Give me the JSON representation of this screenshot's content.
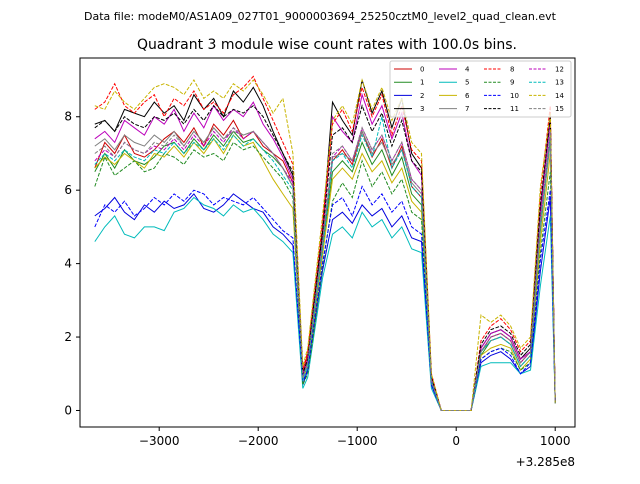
{
  "figure": {
    "suptitle": "Data file: modeM0/AS1A09_027T01_9000003694_25250cztM0_level2_quad_clean.evt",
    "offset_label": "+3.285e8"
  },
  "chart_data": {
    "type": "line",
    "title": "Quadrant 3 module wise count rates with 100.0s bins.",
    "xlabel": "",
    "ylabel": "",
    "xlim": [
      -3800,
      1200
    ],
    "ylim": [
      -0.45,
      9.6
    ],
    "x_ticks": [
      -3000,
      -2000,
      -1000,
      0,
      1000
    ],
    "x_tick_labels": [
      "−3000",
      "−2000",
      "−1000",
      "0",
      "1000"
    ],
    "y_ticks": [
      0,
      2,
      4,
      6,
      8
    ],
    "y_tick_labels": [
      "0",
      "2",
      "4",
      "6",
      "8"
    ],
    "grid": false,
    "legend_placement": "top-right",
    "legend_columns": 4,
    "x": [
      -3650,
      -3550,
      -3450,
      -3350,
      -3250,
      -3150,
      -3050,
      -2950,
      -2850,
      -2750,
      -2650,
      -2550,
      -2450,
      -2350,
      -2250,
      -2150,
      -2050,
      -1950,
      -1850,
      -1750,
      -1650,
      -1550,
      -1500,
      -1450,
      -1350,
      -1250,
      -1150,
      -1050,
      -950,
      -850,
      -750,
      -650,
      -550,
      -450,
      -350,
      -250,
      -150,
      -50,
      50,
      150,
      250,
      350,
      450,
      550,
      650,
      750,
      850,
      950,
      1000
    ],
    "series": [
      {
        "name": "0",
        "color": "#cc0000",
        "dashed": false,
        "values": [
          6.6,
          7.3,
          7.0,
          7.5,
          7.0,
          6.9,
          7.1,
          7.4,
          7.6,
          7.3,
          7.7,
          7.2,
          7.8,
          7.5,
          7.9,
          7.4,
          7.6,
          7.2,
          7.0,
          6.8,
          6.2,
          1.1,
          1.5,
          2.5,
          4.6,
          6.8,
          7.1,
          6.7,
          7.6,
          6.9,
          7.4,
          6.6,
          7.2,
          6.1,
          5.8,
          0.9,
          0.0,
          0.0,
          0.0,
          0.0,
          1.6,
          2.0,
          2.1,
          1.9,
          1.3,
          1.6,
          5.3,
          8.1,
          0.2
        ]
      },
      {
        "name": "1",
        "color": "#228b22",
        "dashed": false,
        "values": [
          6.5,
          7.0,
          6.6,
          7.1,
          6.8,
          6.7,
          6.9,
          7.2,
          7.3,
          7.0,
          7.4,
          7.1,
          7.5,
          7.2,
          7.6,
          7.3,
          7.4,
          7.1,
          6.9,
          6.6,
          6.1,
          0.9,
          1.3,
          2.3,
          4.4,
          6.5,
          6.8,
          6.5,
          7.3,
          6.7,
          7.1,
          6.4,
          6.9,
          5.9,
          5.6,
          0.8,
          0.0,
          0.0,
          0.0,
          0.0,
          1.5,
          1.9,
          2.0,
          1.8,
          1.2,
          1.5,
          4.9,
          7.4,
          0.2
        ]
      },
      {
        "name": "2",
        "color": "#0000dd",
        "dashed": false,
        "values": [
          5.3,
          5.5,
          5.8,
          5.4,
          5.2,
          5.6,
          5.4,
          5.7,
          5.5,
          5.6,
          5.9,
          5.5,
          5.4,
          5.6,
          5.9,
          5.7,
          5.5,
          5.4,
          5.0,
          4.8,
          4.5,
          0.7,
          1.1,
          2.0,
          3.8,
          5.2,
          5.4,
          5.1,
          5.6,
          5.3,
          5.5,
          5.0,
          5.3,
          4.7,
          4.6,
          0.7,
          0.0,
          0.0,
          0.0,
          0.0,
          1.3,
          1.5,
          1.6,
          1.4,
          1.0,
          1.2,
          3.8,
          5.8,
          0.2
        ]
      },
      {
        "name": "3",
        "color": "#000000",
        "dashed": false,
        "values": [
          7.8,
          7.9,
          7.6,
          8.2,
          8.1,
          8.0,
          8.4,
          8.1,
          8.3,
          7.9,
          8.6,
          8.2,
          8.5,
          8.0,
          8.7,
          8.4,
          8.8,
          8.3,
          7.6,
          7.0,
          6.4,
          1.0,
          1.4,
          2.6,
          4.9,
          8.4,
          7.9,
          7.5,
          9.0,
          8.1,
          8.7,
          7.7,
          8.5,
          7.0,
          6.6,
          0.9,
          0.0,
          0.0,
          0.0,
          0.0,
          1.7,
          2.1,
          2.2,
          2.0,
          1.4,
          1.7,
          5.5,
          8.0,
          0.2
        ]
      },
      {
        "name": "4",
        "color": "#bb00bb",
        "dashed": false,
        "values": [
          7.4,
          7.6,
          7.3,
          7.9,
          7.7,
          7.5,
          8.0,
          7.8,
          8.2,
          7.6,
          8.1,
          7.7,
          8.3,
          7.9,
          8.2,
          8.0,
          8.4,
          7.8,
          7.4,
          6.9,
          6.3,
          1.0,
          1.4,
          2.5,
          4.7,
          8.0,
          7.6,
          7.3,
          8.6,
          7.8,
          8.3,
          7.4,
          8.1,
          6.8,
          6.4,
          0.9,
          0.0,
          0.0,
          0.0,
          0.0,
          1.7,
          2.1,
          2.2,
          2.0,
          1.4,
          1.6,
          5.4,
          7.9,
          0.2
        ]
      },
      {
        "name": "5",
        "color": "#00bbbb",
        "dashed": false,
        "values": [
          4.6,
          5.0,
          5.3,
          4.8,
          4.7,
          5.0,
          5.0,
          4.9,
          5.4,
          5.5,
          5.8,
          5.6,
          5.5,
          5.3,
          5.6,
          5.4,
          5.5,
          5.2,
          4.8,
          4.6,
          4.3,
          0.6,
          0.9,
          1.8,
          3.6,
          4.8,
          5.0,
          4.7,
          5.4,
          5.0,
          5.2,
          4.7,
          5.0,
          4.4,
          4.3,
          0.6,
          0.0,
          0.0,
          0.0,
          0.0,
          1.2,
          1.3,
          1.3,
          1.3,
          1.0,
          1.1,
          3.4,
          5.3,
          0.2
        ]
      },
      {
        "name": "6",
        "color": "#c8b400",
        "dashed": false,
        "values": [
          6.6,
          6.9,
          6.7,
          7.0,
          6.8,
          6.6,
          7.0,
          6.9,
          7.2,
          6.9,
          7.3,
          7.0,
          7.4,
          7.0,
          7.5,
          7.2,
          7.3,
          6.8,
          6.3,
          5.9,
          5.5,
          0.8,
          1.2,
          2.1,
          4.2,
          6.3,
          6.6,
          6.3,
          7.0,
          6.5,
          6.8,
          6.2,
          6.6,
          5.7,
          5.4,
          0.8,
          0.0,
          0.0,
          0.0,
          0.0,
          1.5,
          1.7,
          1.8,
          1.7,
          1.1,
          1.4,
          4.6,
          7.0,
          0.2
        ]
      },
      {
        "name": "7",
        "color": "#808080",
        "dashed": false,
        "values": [
          7.2,
          7.4,
          7.1,
          7.5,
          7.3,
          7.2,
          7.5,
          7.3,
          7.6,
          7.2,
          7.6,
          7.3,
          7.7,
          7.4,
          7.6,
          7.5,
          7.6,
          7.3,
          7.0,
          6.6,
          6.1,
          0.9,
          1.3,
          2.4,
          4.5,
          6.9,
          7.0,
          6.8,
          7.6,
          7.0,
          7.3,
          6.7,
          7.1,
          6.2,
          5.9,
          0.8,
          0.0,
          0.0,
          0.0,
          0.0,
          1.6,
          1.9,
          2.0,
          1.8,
          1.2,
          1.5,
          5.0,
          7.3,
          0.2
        ]
      },
      {
        "name": "8",
        "color": "#ff0000",
        "dashed": true,
        "values": [
          8.2,
          8.4,
          8.9,
          8.3,
          8.1,
          8.4,
          8.6,
          8.0,
          8.5,
          8.3,
          8.7,
          8.2,
          8.4,
          8.1,
          8.6,
          8.8,
          9.1,
          8.5,
          7.9,
          7.3,
          6.7,
          1.1,
          1.6,
          2.8,
          5.1,
          7.8,
          8.2,
          7.6,
          8.8,
          8.0,
          8.6,
          7.5,
          8.3,
          7.1,
          6.8,
          1.0,
          0.0,
          0.0,
          0.0,
          0.0,
          1.9,
          2.3,
          2.5,
          2.2,
          1.6,
          1.9,
          5.9,
          8.3,
          0.2
        ]
      },
      {
        "name": "9",
        "color": "#228b22",
        "dashed": true,
        "values": [
          6.1,
          6.9,
          6.4,
          6.6,
          6.8,
          6.5,
          6.6,
          7.0,
          6.9,
          6.7,
          7.1,
          6.9,
          7.0,
          6.8,
          7.3,
          7.1,
          7.2,
          6.9,
          6.6,
          6.3,
          5.8,
          0.7,
          1.0,
          1.9,
          3.9,
          5.7,
          6.2,
          5.8,
          6.8,
          6.1,
          6.5,
          5.9,
          6.3,
          5.4,
          5.2,
          0.7,
          0.0,
          0.0,
          0.0,
          0.0,
          1.4,
          1.6,
          1.7,
          1.6,
          1.1,
          1.3,
          4.3,
          6.5,
          0.2
        ]
      },
      {
        "name": "10",
        "color": "#0000ff",
        "dashed": true,
        "values": [
          5.0,
          5.6,
          5.4,
          5.7,
          5.3,
          5.5,
          5.8,
          5.6,
          5.9,
          5.7,
          6.0,
          5.9,
          5.6,
          5.8,
          5.7,
          5.6,
          5.8,
          5.5,
          5.2,
          4.9,
          4.7,
          0.8,
          1.1,
          2.1,
          4.0,
          5.6,
          5.8,
          5.3,
          6.1,
          5.6,
          5.9,
          5.4,
          5.7,
          5.0,
          4.8,
          0.7,
          0.0,
          0.0,
          0.0,
          0.0,
          1.4,
          1.6,
          1.7,
          1.5,
          1.0,
          1.3,
          4.1,
          6.0,
          0.2
        ]
      },
      {
        "name": "11",
        "color": "#000000",
        "dashed": true,
        "values": [
          7.7,
          7.9,
          7.6,
          8.0,
          7.8,
          7.7,
          8.0,
          7.9,
          8.1,
          7.8,
          8.2,
          7.9,
          8.3,
          8.0,
          8.2,
          8.1,
          8.3,
          8.0,
          7.5,
          7.0,
          6.5,
          1.0,
          1.4,
          2.6,
          4.8,
          7.5,
          7.7,
          7.3,
          8.3,
          7.6,
          8.1,
          7.2,
          7.9,
          6.8,
          6.5,
          0.9,
          0.0,
          0.0,
          0.0,
          0.0,
          1.8,
          2.2,
          2.3,
          2.1,
          1.5,
          1.8,
          5.6,
          8.0,
          0.2
        ]
      },
      {
        "name": "12",
        "color": "#bb00bb",
        "dashed": true,
        "values": [
          6.8,
          7.1,
          6.9,
          7.3,
          7.1,
          7.0,
          7.2,
          7.1,
          7.4,
          7.1,
          7.5,
          7.2,
          7.6,
          7.3,
          7.7,
          7.4,
          7.6,
          7.3,
          7.0,
          6.6,
          6.2,
          0.9,
          1.3,
          2.4,
          4.5,
          6.9,
          7.2,
          6.8,
          7.7,
          7.1,
          7.5,
          6.8,
          7.3,
          6.3,
          6.0,
          0.8,
          0.0,
          0.0,
          0.0,
          0.0,
          1.6,
          2.0,
          2.1,
          1.9,
          1.3,
          1.6,
          5.2,
          7.6,
          0.2
        ]
      },
      {
        "name": "13",
        "color": "#00bbbb",
        "dashed": true,
        "values": [
          6.7,
          7.0,
          6.8,
          7.1,
          6.9,
          6.8,
          7.1,
          7.0,
          7.3,
          7.0,
          7.3,
          7.1,
          7.4,
          7.1,
          7.5,
          7.2,
          7.4,
          7.1,
          6.8,
          6.4,
          6.0,
          0.8,
          1.2,
          2.3,
          4.4,
          6.8,
          7.0,
          6.6,
          7.5,
          6.9,
          8.0,
          6.6,
          7.1,
          6.1,
          5.8,
          0.8,
          0.0,
          0.0,
          0.0,
          0.0,
          1.6,
          1.9,
          2.0,
          1.8,
          1.2,
          1.5,
          5.1,
          7.5,
          0.2
        ]
      },
      {
        "name": "14",
        "color": "#c8b400",
        "dashed": true,
        "values": [
          8.3,
          8.2,
          8.7,
          8.4,
          8.2,
          8.5,
          8.8,
          8.9,
          8.8,
          8.6,
          9.0,
          8.5,
          8.7,
          8.5,
          8.9,
          8.7,
          9.0,
          8.6,
          8.1,
          8.5,
          7.0,
          1.2,
          1.7,
          2.9,
          5.3,
          7.9,
          8.3,
          7.8,
          9.0,
          8.2,
          8.8,
          7.9,
          8.5,
          7.3,
          7.0,
          1.0,
          0.0,
          0.0,
          0.0,
          0.0,
          2.6,
          2.4,
          2.6,
          2.3,
          1.7,
          2.0,
          6.1,
          8.1,
          0.2
        ]
      },
      {
        "name": "15",
        "color": "#808080",
        "dashed": true,
        "values": [
          7.0,
          7.2,
          6.9,
          7.3,
          7.1,
          7.0,
          7.3,
          7.2,
          7.5,
          7.2,
          7.6,
          7.3,
          7.7,
          7.4,
          7.7,
          7.5,
          7.6,
          7.3,
          7.0,
          6.6,
          6.1,
          0.9,
          1.3,
          2.4,
          4.6,
          7.0,
          7.2,
          6.8,
          7.7,
          7.1,
          7.5,
          6.8,
          7.3,
          6.3,
          6.0,
          0.8,
          0.0,
          0.0,
          0.0,
          0.0,
          1.6,
          2.0,
          2.1,
          1.9,
          1.3,
          1.6,
          5.2,
          7.6,
          0.2
        ]
      }
    ]
  }
}
